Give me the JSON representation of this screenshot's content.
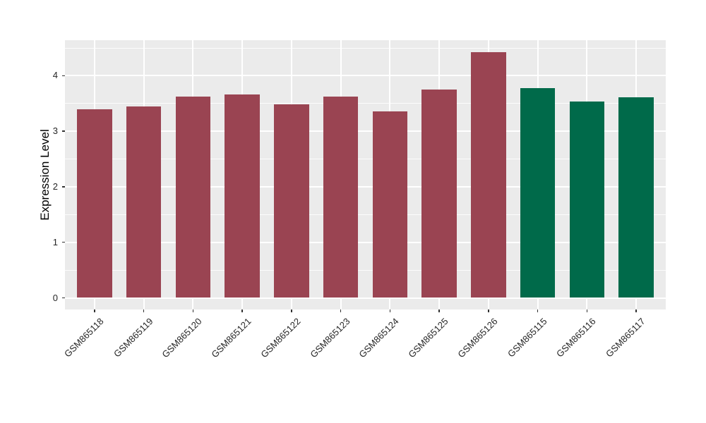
{
  "chart_data": {
    "type": "bar",
    "title": "",
    "xlabel": "",
    "ylabel": "Expression Level",
    "categories": [
      "GSM865118",
      "GSM865119",
      "GSM865120",
      "GSM865121",
      "GSM865122",
      "GSM865123",
      "GSM865124",
      "GSM865125",
      "GSM865126",
      "GSM865115",
      "GSM865116",
      "GSM865117"
    ],
    "values": [
      3.4,
      3.45,
      3.62,
      3.66,
      3.49,
      3.63,
      3.36,
      3.75,
      4.43,
      3.78,
      3.54,
      3.61
    ],
    "bar_colors": [
      "#9A4452",
      "#9A4452",
      "#9A4452",
      "#9A4452",
      "#9A4452",
      "#9A4452",
      "#9A4452",
      "#9A4452",
      "#9A4452",
      "#006A4A",
      "#006A4A",
      "#006A4A"
    ],
    "group_colors": {
      "maroon": "#9A4452",
      "green": "#006A4A"
    },
    "ylim": [
      -0.21,
      4.64
    ],
    "yticks": [
      "0",
      "1",
      "2",
      "3",
      "4"
    ],
    "ytick_values": [
      0,
      1,
      2,
      3,
      4
    ],
    "ytick_minor_values": [
      0.5,
      1.5,
      2.5,
      3.5,
      4.5
    ],
    "legend": "none",
    "grid": "on",
    "panel_bg": "#EBEBEB",
    "grid_color": "#FFFFFF",
    "axis_text_color": "#262626",
    "tick_mark_color": "#333333",
    "background": "#FFFFFF"
  }
}
